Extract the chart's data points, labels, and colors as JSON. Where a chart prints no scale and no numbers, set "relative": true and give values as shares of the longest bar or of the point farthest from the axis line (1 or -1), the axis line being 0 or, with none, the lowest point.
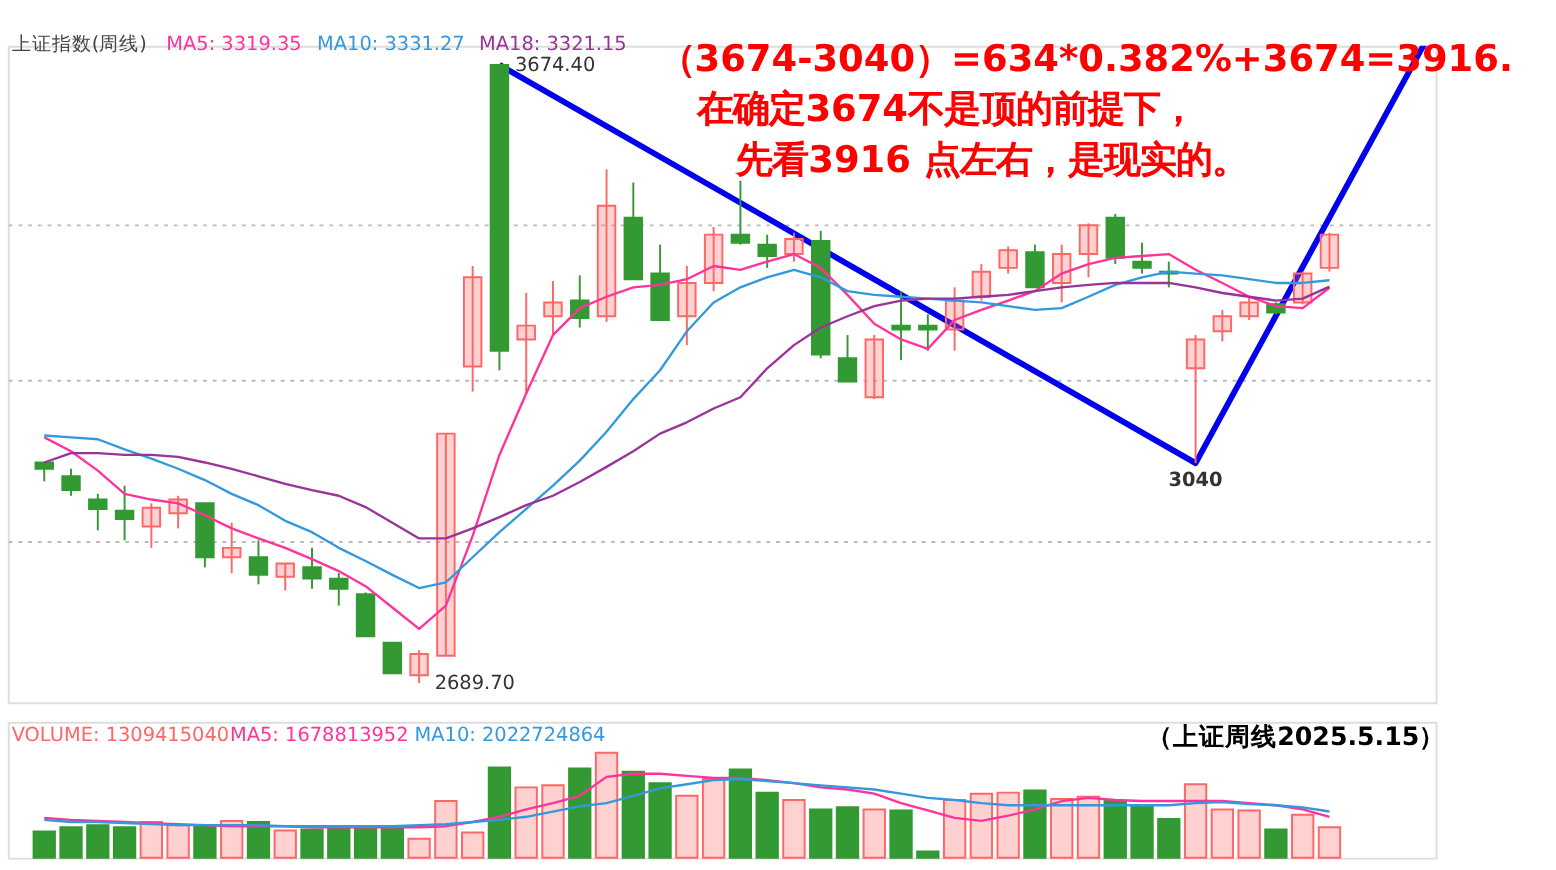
{
  "chart_data": [
    {
      "type": "candlestick",
      "title": "上证指数(周线)",
      "tick_labels": false,
      "grid": "y",
      "categories": [
        null,
        null,
        null,
        null,
        null,
        null,
        null,
        null,
        null,
        null,
        null,
        null,
        null,
        null,
        null,
        null,
        null,
        null,
        null,
        null,
        null,
        null,
        null,
        null,
        null,
        null,
        null,
        null,
        null,
        null,
        null,
        null,
        null,
        null,
        null,
        null,
        null,
        null,
        null,
        null,
        null,
        null,
        null,
        null,
        null,
        null,
        null,
        null,
        null
      ],
      "ylim": [
        2659,
        3705
      ],
      "yticks": [
        {
          "value": 2917,
          "label": null
        },
        {
          "value": 3173,
          "label": null
        },
        {
          "value": 3419,
          "label": null
        }
      ],
      "ohlc": [
        [
          3041,
          3041,
          3011,
          3031
        ],
        [
          3019,
          3031,
          2988,
          2997
        ],
        [
          2982,
          2991,
          2933,
          2967
        ],
        [
          2964,
          3004,
          2917,
          2951
        ],
        [
          2939,
          2976,
          2905,
          2969
        ],
        [
          2960,
          2988,
          2936,
          2982
        ],
        [
          2976,
          2976,
          2874,
          2890
        ],
        [
          2890,
          2945,
          2865,
          2905
        ],
        [
          2890,
          2917,
          2847,
          2862
        ],
        [
          2859,
          2880,
          2837,
          2880
        ],
        [
          2874,
          2905,
          2840,
          2856
        ],
        [
          2856,
          2865,
          2813,
          2840
        ],
        [
          2831,
          2834,
          2764,
          2764
        ],
        [
          2754,
          2754,
          2705,
          2705
        ],
        [
          2702,
          2742,
          2689.7,
          2736
        ],
        [
          2733,
          3087,
          2733,
          3087
        ],
        [
          3194,
          3354,
          3154,
          3336
        ],
        [
          3674.4,
          3674.4,
          3188,
          3219
        ],
        [
          3237,
          3311,
          3151,
          3259
        ],
        [
          3274,
          3330,
          3244,
          3296
        ],
        [
          3299,
          3339,
          3256,
          3271
        ],
        [
          3274,
          3508,
          3265,
          3450
        ],
        [
          3431,
          3487,
          3333,
          3333
        ],
        [
          3342,
          3388,
          3268,
          3268
        ],
        [
          3274,
          3354,
          3228,
          3327
        ],
        [
          3327,
          3416,
          3314,
          3404
        ],
        [
          3404,
          3490,
          3388,
          3391
        ],
        [
          3388,
          3404,
          3351,
          3370
        ],
        [
          3373,
          3407,
          3361,
          3397
        ],
        [
          3394,
          3410,
          3207,
          3213
        ],
        [
          3207,
          3244,
          3170,
          3170
        ],
        [
          3145,
          3244,
          3142,
          3237
        ],
        [
          3259,
          3314,
          3204,
          3253
        ],
        [
          3259,
          3277,
          3219,
          3253
        ],
        [
          3253,
          3320,
          3219,
          3299
        ],
        [
          3305,
          3357,
          3299,
          3345
        ],
        [
          3351,
          3385,
          3342,
          3379
        ],
        [
          3376,
          3388,
          3320,
          3320
        ],
        [
          3327,
          3388,
          3296,
          3373
        ],
        [
          3373,
          3422,
          3336,
          3419
        ],
        [
          3431,
          3437,
          3357,
          3367
        ],
        [
          3361,
          3391,
          3342,
          3351
        ],
        [
          3345,
          3361,
          3320,
          3342
        ],
        [
          3191,
          3244,
          3040,
          3237
        ],
        [
          3250,
          3284,
          3234,
          3274
        ],
        [
          3274,
          3305,
          3268,
          3296
        ],
        [
          3293,
          3296,
          3277,
          3280
        ],
        [
          3296,
          3345,
          3293,
          3342
        ],
        [
          3351,
          3407,
          3345,
          3404
        ]
      ],
      "colors": [
        "#339933",
        "#339933",
        "#339933",
        "#339933",
        "#ff6666",
        "#ff6666",
        "#339933",
        "#ff6666",
        "#339933",
        "#ff6666",
        "#339933",
        "#339933",
        "#339933",
        "#339933",
        "#ff6666",
        "#ff6666",
        "#ff6666",
        "#339933",
        "#ff6666",
        "#ff6666",
        "#339933",
        "#ff6666",
        "#339933",
        "#339933",
        "#ff6666",
        "#ff6666",
        "#339933",
        "#339933",
        "#ff6666",
        "#339933",
        "#339933",
        "#ff6666",
        "#339933",
        "#339933",
        "#ff6666",
        "#ff6666",
        "#ff6666",
        "#339933",
        "#ff6666",
        "#ff6666",
        "#339933",
        "#339933",
        "#339933",
        "#ff6666",
        "#ff6666",
        "#ff6666",
        "#339933",
        "#ff6666",
        "#ff6666"
      ],
      "series": [
        {
          "name": "MA5: 3319.35",
          "type": "line",
          "color": "#ff3399",
          "values": [
            3081,
            3059,
            3028,
            2991,
            2982,
            2976,
            2957,
            2936,
            2920,
            2905,
            2887,
            2868,
            2844,
            2810,
            2776,
            2813,
            2924,
            3053,
            3151,
            3244,
            3287,
            3305,
            3320,
            3324,
            3333,
            3354,
            3348,
            3361,
            3373,
            3351,
            3308,
            3262,
            3237,
            3222,
            3268,
            3284,
            3299,
            3314,
            3342,
            3357,
            3367,
            3370,
            3373,
            3348,
            3327,
            3305,
            3290,
            3287,
            3319.35
          ]
        },
        {
          "name": "MA10: 3331.27",
          "type": "line",
          "color": "#3399dd",
          "values": [
            3084,
            3081,
            3078,
            3062,
            3047,
            3031,
            3013,
            2991,
            2973,
            2948,
            2930,
            2905,
            2884,
            2862,
            2841,
            2850,
            2890,
            2930,
            2967,
            3004,
            3044,
            3090,
            3142,
            3188,
            3250,
            3296,
            3320,
            3336,
            3348,
            3336,
            3314,
            3308,
            3305,
            3302,
            3299,
            3296,
            3290,
            3284,
            3287,
            3305,
            3324,
            3336,
            3345,
            3342,
            3339,
            3333,
            3327,
            3327,
            3331.27
          ]
        },
        {
          "name": "MA18: 3321.15",
          "type": "line",
          "color": "#993399",
          "values": [
            3041,
            3056,
            3056,
            3053,
            3053,
            3050,
            3041,
            3031,
            3019,
            3007,
            2997,
            2988,
            2970,
            2945,
            2920,
            2920,
            2936,
            2954,
            2973,
            2988,
            3010,
            3034,
            3059,
            3087,
            3105,
            3127,
            3145,
            3191,
            3228,
            3256,
            3274,
            3290,
            3299,
            3302,
            3302,
            3305,
            3308,
            3314,
            3320,
            3324,
            3327,
            3327,
            3327,
            3320,
            3311,
            3305,
            3299,
            3302,
            3321.15
          ]
        },
        {
          "type": "line",
          "color": "#0000ee",
          "values": [
            null,
            null,
            null,
            null,
            null,
            null,
            null,
            null,
            null,
            null,
            null,
            null,
            null,
            null,
            null,
            null,
            null,
            3674.4,
            null,
            null,
            null,
            null,
            null,
            null,
            null,
            null,
            null,
            null,
            null,
            null,
            null,
            null,
            null,
            null,
            null,
            null,
            null,
            null,
            null,
            null,
            null,
            null,
            null,
            3040,
            null,
            null,
            null,
            null,
            3431
          ]
        }
      ],
      "annotations": [
        "3674.40",
        "2689.70",
        {
          "text": "3040",
          "y": 3040
        },
        "（3674-3040）=634*0.382%+3674=3916.",
        "在确定3674不是顶的前提下，",
        "先看3916 点左右，是现实的。"
      ]
    },
    {
      "type": "bar",
      "relative": true,
      "tick_labels": false,
      "categories": [
        null,
        null,
        null,
        null,
        null,
        null,
        null,
        null,
        null,
        null,
        null,
        null,
        null,
        null,
        null,
        null,
        null,
        null,
        null,
        null,
        null,
        null,
        null,
        null,
        null,
        null,
        null,
        null,
        null,
        null,
        null,
        null,
        null,
        null,
        null,
        null,
        null,
        null,
        null,
        null,
        null,
        null,
        null,
        null,
        null,
        null,
        null,
        null,
        null
      ],
      "series": [
        {
          "name": "VOLUME: 1309415040",
          "color": "#ff6666",
          "colors": [
            "#339933",
            "#339933",
            "#339933",
            "#339933",
            "#ff6666",
            "#ff6666",
            "#339933",
            "#ff6666",
            "#339933",
            "#ff6666",
            "#339933",
            "#339933",
            "#339933",
            "#339933",
            "#ff6666",
            "#ff6666",
            "#ff6666",
            "#339933",
            "#ff6666",
            "#ff6666",
            "#339933",
            "#ff6666",
            "#339933",
            "#339933",
            "#ff6666",
            "#ff6666",
            "#339933",
            "#339933",
            "#ff6666",
            "#339933",
            "#339933",
            "#ff6666",
            "#339933",
            "#339933",
            "#ff6666",
            "#ff6666",
            "#ff6666",
            "#339933",
            "#ff6666",
            "#ff6666",
            "#339933",
            "#339933",
            "#339933",
            "#ff6666",
            "#ff6666",
            "#ff6666",
            "#339933",
            "#ff6666",
            "#ff6666"
          ],
          "values": [
            0.25,
            0.29,
            0.31,
            0.29,
            0.34,
            0.31,
            0.31,
            0.35,
            0.34,
            0.26,
            0.27,
            0.29,
            0.29,
            0.28,
            0.18,
            0.54,
            0.24,
            0.86,
            0.67,
            0.69,
            0.85,
            1,
            0.82,
            0.71,
            0.59,
            0.75,
            0.84,
            0.62,
            0.55,
            0.46,
            0.48,
            0.46,
            0.45,
            0.06,
            0.55,
            0.61,
            0.62,
            0.64,
            0.56,
            0.58,
            0.54,
            0.5,
            0.37,
            0.7,
            0.46,
            0.45,
            0.27,
            0.41,
            0.29
          ]
        },
        {
          "name": "MA5: 1678813952",
          "type": "line",
          "color": "#ff3399",
          "values": [
            0.38,
            0.36,
            0.35,
            0.34,
            0.33,
            0.32,
            0.31,
            0.3,
            0.3,
            0.3,
            0.29,
            0.29,
            0.29,
            0.29,
            0.29,
            0.3,
            0.34,
            0.39,
            0.46,
            0.52,
            0.59,
            0.77,
            0.8,
            0.8,
            0.78,
            0.76,
            0.76,
            0.74,
            0.71,
            0.67,
            0.65,
            0.61,
            0.52,
            0.45,
            0.38,
            0.35,
            0.4,
            0.46,
            0.54,
            0.57,
            0.55,
            0.54,
            0.54,
            0.54,
            0.54,
            0.52,
            0.5,
            0.46,
            0.39
          ]
        },
        {
          "name": "MA10: 2022724864",
          "type": "line",
          "color": "#3399dd",
          "values": [
            0.36,
            0.34,
            0.34,
            0.33,
            0.32,
            0.31,
            0.31,
            0.31,
            0.31,
            0.3,
            0.3,
            0.3,
            0.3,
            0.3,
            0.31,
            0.32,
            0.34,
            0.36,
            0.39,
            0.44,
            0.49,
            0.52,
            0.59,
            0.66,
            0.7,
            0.74,
            0.75,
            0.73,
            0.71,
            0.69,
            0.67,
            0.65,
            0.61,
            0.57,
            0.55,
            0.52,
            0.5,
            0.5,
            0.5,
            0.5,
            0.5,
            0.5,
            0.5,
            0.52,
            0.53,
            0.51,
            0.5,
            0.48,
            0.44
          ]
        }
      ],
      "annotations": [
        "（上证周线2025.5.15）"
      ]
    }
  ]
}
